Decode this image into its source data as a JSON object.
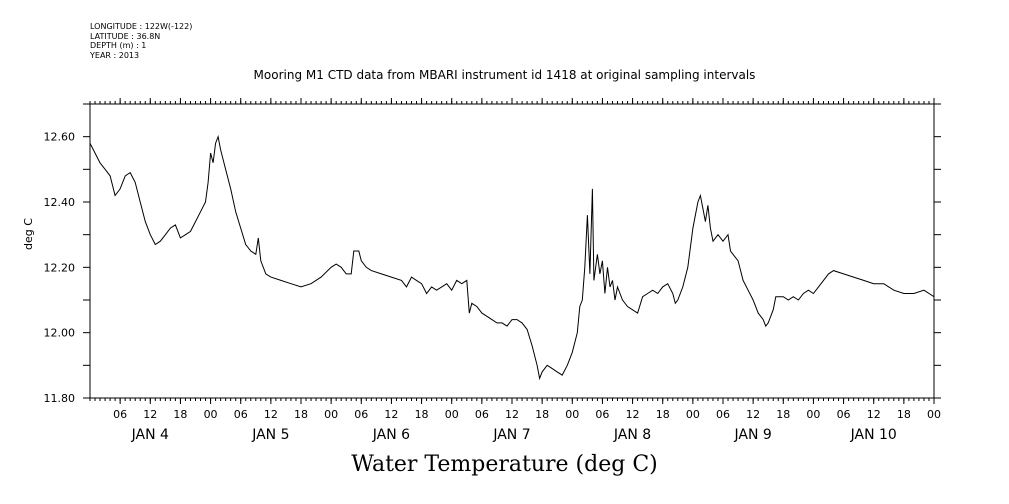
{
  "meta": {
    "longitude": "LONGITUDE : 122W(-122)",
    "latitude": "LATITUDE : 36.8N",
    "depth": "DEPTH (m) : 1",
    "year": "YEAR : 2013"
  },
  "chart_data": {
    "type": "line",
    "title": "Mooring M1 CTD data from MBARI instrument id 1418 at original sampling intervals",
    "xlabel": "Water Temperature (deg C)",
    "ylabel": "deg C",
    "ylim": [
      11.8,
      12.7
    ],
    "yticks": [
      "11.80",
      "12.00",
      "12.20",
      "12.40",
      "12.60"
    ],
    "hour_ticks": [
      "06",
      "12",
      "18",
      "00"
    ],
    "day_labels": [
      "JAN  4",
      "JAN  5",
      "JAN  6",
      "JAN  7",
      "JAN  8",
      "JAN  9",
      "JAN 10"
    ],
    "x_unit": "hours since JAN 3 00:00",
    "xlim": [
      24,
      192
    ],
    "grid": false,
    "series": [
      {
        "values": [
          [
            24.0,
            12.58
          ],
          [
            25.0,
            12.55
          ],
          [
            26.0,
            12.52
          ],
          [
            27.0,
            12.5
          ],
          [
            28.0,
            12.48
          ],
          [
            29.0,
            12.42
          ],
          [
            30.0,
            12.44
          ],
          [
            31.0,
            12.48
          ],
          [
            32.0,
            12.49
          ],
          [
            33.0,
            12.46
          ],
          [
            34.0,
            12.4
          ],
          [
            35.0,
            12.34
          ],
          [
            36.0,
            12.3
          ],
          [
            37.0,
            12.27
          ],
          [
            38.0,
            12.28
          ],
          [
            39.0,
            12.3
          ],
          [
            40.0,
            12.32
          ],
          [
            41.0,
            12.33
          ],
          [
            42.0,
            12.29
          ],
          [
            43.0,
            12.3
          ],
          [
            44.0,
            12.31
          ],
          [
            45.0,
            12.34
          ],
          [
            46.0,
            12.37
          ],
          [
            47.0,
            12.4
          ],
          [
            47.5,
            12.46
          ],
          [
            48.0,
            12.55
          ],
          [
            48.5,
            12.52
          ],
          [
            49.0,
            12.58
          ],
          [
            49.5,
            12.6
          ],
          [
            50.0,
            12.56
          ],
          [
            51.0,
            12.5
          ],
          [
            52.0,
            12.44
          ],
          [
            53.0,
            12.37
          ],
          [
            54.0,
            12.32
          ],
          [
            55.0,
            12.27
          ],
          [
            56.0,
            12.25
          ],
          [
            57.0,
            12.24
          ],
          [
            57.5,
            12.29
          ],
          [
            58.0,
            12.22
          ],
          [
            59.0,
            12.18
          ],
          [
            60.0,
            12.17
          ],
          [
            62.0,
            12.16
          ],
          [
            64.0,
            12.15
          ],
          [
            66.0,
            12.14
          ],
          [
            68.0,
            12.15
          ],
          [
            70.0,
            12.17
          ],
          [
            72.0,
            12.2
          ],
          [
            73.0,
            12.21
          ],
          [
            74.0,
            12.2
          ],
          [
            75.0,
            12.18
          ],
          [
            76.0,
            12.18
          ],
          [
            76.5,
            12.25
          ],
          [
            77.5,
            12.25
          ],
          [
            78.0,
            12.22
          ],
          [
            79.0,
            12.2
          ],
          [
            80.0,
            12.19
          ],
          [
            82.0,
            12.18
          ],
          [
            84.0,
            12.17
          ],
          [
            86.0,
            12.16
          ],
          [
            87.0,
            12.14
          ],
          [
            88.0,
            12.17
          ],
          [
            89.0,
            12.16
          ],
          [
            90.0,
            12.15
          ],
          [
            91.0,
            12.12
          ],
          [
            92.0,
            12.14
          ],
          [
            93.0,
            12.13
          ],
          [
            94.0,
            12.14
          ],
          [
            95.0,
            12.15
          ],
          [
            96.0,
            12.13
          ],
          [
            97.0,
            12.16
          ],
          [
            98.0,
            12.15
          ],
          [
            99.0,
            12.16
          ],
          [
            99.5,
            12.06
          ],
          [
            100.0,
            12.09
          ],
          [
            101.0,
            12.08
          ],
          [
            102.0,
            12.06
          ],
          [
            103.0,
            12.05
          ],
          [
            104.0,
            12.04
          ],
          [
            105.0,
            12.03
          ],
          [
            106.0,
            12.03
          ],
          [
            107.0,
            12.02
          ],
          [
            108.0,
            12.04
          ],
          [
            109.0,
            12.04
          ],
          [
            110.0,
            12.03
          ],
          [
            111.0,
            12.01
          ],
          [
            112.0,
            11.96
          ],
          [
            113.0,
            11.9
          ],
          [
            113.5,
            11.86
          ],
          [
            114.0,
            11.88
          ],
          [
            115.0,
            11.9
          ],
          [
            116.0,
            11.89
          ],
          [
            117.0,
            11.88
          ],
          [
            118.0,
            11.87
          ],
          [
            119.0,
            11.9
          ],
          [
            120.0,
            11.94
          ],
          [
            121.0,
            12.0
          ],
          [
            121.5,
            12.08
          ],
          [
            122.0,
            12.1
          ],
          [
            122.5,
            12.2
          ],
          [
            123.0,
            12.36
          ],
          [
            123.5,
            12.18
          ],
          [
            124.0,
            12.44
          ],
          [
            124.3,
            12.16
          ],
          [
            125.0,
            12.24
          ],
          [
            125.5,
            12.18
          ],
          [
            126.0,
            12.22
          ],
          [
            126.5,
            12.12
          ],
          [
            127.0,
            12.2
          ],
          [
            127.5,
            12.14
          ],
          [
            128.0,
            12.16
          ],
          [
            128.5,
            12.1
          ],
          [
            129.0,
            12.14
          ],
          [
            130.0,
            12.1
          ],
          [
            131.0,
            12.08
          ],
          [
            132.0,
            12.07
          ],
          [
            133.0,
            12.06
          ],
          [
            134.0,
            12.11
          ],
          [
            135.0,
            12.12
          ],
          [
            136.0,
            12.13
          ],
          [
            137.0,
            12.12
          ],
          [
            138.0,
            12.14
          ],
          [
            139.0,
            12.15
          ],
          [
            140.0,
            12.12
          ],
          [
            140.5,
            12.09
          ],
          [
            141.0,
            12.1
          ],
          [
            142.0,
            12.14
          ],
          [
            143.0,
            12.2
          ],
          [
            144.0,
            12.32
          ],
          [
            145.0,
            12.4
          ],
          [
            145.5,
            12.42
          ],
          [
            146.0,
            12.38
          ],
          [
            146.5,
            12.34
          ],
          [
            147.0,
            12.39
          ],
          [
            147.5,
            12.32
          ],
          [
            148.0,
            12.28
          ],
          [
            149.0,
            12.3
          ],
          [
            150.0,
            12.28
          ],
          [
            151.0,
            12.3
          ],
          [
            151.5,
            12.25
          ],
          [
            152.0,
            12.24
          ],
          [
            153.0,
            12.22
          ],
          [
            154.0,
            12.16
          ],
          [
            155.0,
            12.13
          ],
          [
            156.0,
            12.1
          ],
          [
            157.0,
            12.06
          ],
          [
            158.0,
            12.04
          ],
          [
            158.5,
            12.02
          ],
          [
            159.0,
            12.03
          ],
          [
            160.0,
            12.07
          ],
          [
            160.5,
            12.11
          ],
          [
            162.0,
            12.11
          ],
          [
            163.0,
            12.1
          ],
          [
            164.0,
            12.11
          ],
          [
            165.0,
            12.1
          ],
          [
            166.0,
            12.12
          ],
          [
            167.0,
            12.13
          ],
          [
            168.0,
            12.12
          ],
          [
            169.0,
            12.14
          ],
          [
            170.0,
            12.16
          ],
          [
            171.0,
            12.18
          ],
          [
            172.0,
            12.19
          ],
          [
            174.0,
            12.18
          ],
          [
            176.0,
            12.17
          ],
          [
            178.0,
            12.16
          ],
          [
            180.0,
            12.15
          ],
          [
            182.0,
            12.15
          ],
          [
            184.0,
            12.13
          ],
          [
            186.0,
            12.12
          ],
          [
            188.0,
            12.12
          ],
          [
            190.0,
            12.13
          ],
          [
            191.0,
            12.12
          ],
          [
            192.0,
            12.11
          ]
        ]
      }
    ]
  }
}
